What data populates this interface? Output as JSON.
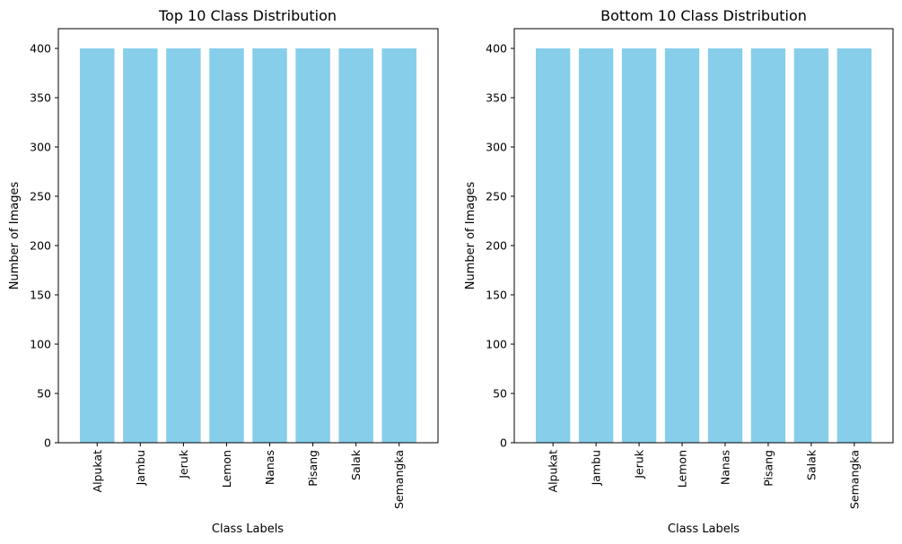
{
  "chart_data": [
    {
      "type": "bar",
      "title": "Top 10 Class Distribution",
      "xlabel": "Class Labels",
      "ylabel": "Number of Images",
      "categories": [
        "Alpukat",
        "Jambu",
        "Jeruk",
        "Lemon",
        "Nanas",
        "Pisang",
        "Salak",
        "Semangka"
      ],
      "values": [
        400,
        400,
        400,
        400,
        400,
        400,
        400,
        400
      ],
      "ylim": [
        0,
        420
      ],
      "yticks": [
        0,
        50,
        100,
        150,
        200,
        250,
        300,
        350,
        400
      ],
      "bar_color": "#87CEEB",
      "grid": false,
      "legend": "none"
    },
    {
      "type": "bar",
      "title": "Bottom 10 Class Distribution",
      "xlabel": "Class Labels",
      "ylabel": "Number of Images",
      "categories": [
        "Alpukat",
        "Jambu",
        "Jeruk",
        "Lemon",
        "Nanas",
        "Pisang",
        "Salak",
        "Semangka"
      ],
      "values": [
        400,
        400,
        400,
        400,
        400,
        400,
        400,
        400
      ],
      "ylim": [
        0,
        420
      ],
      "yticks": [
        0,
        50,
        100,
        150,
        200,
        250,
        300,
        350,
        400
      ],
      "bar_color": "#87CEEB",
      "grid": false,
      "legend": "none"
    }
  ]
}
